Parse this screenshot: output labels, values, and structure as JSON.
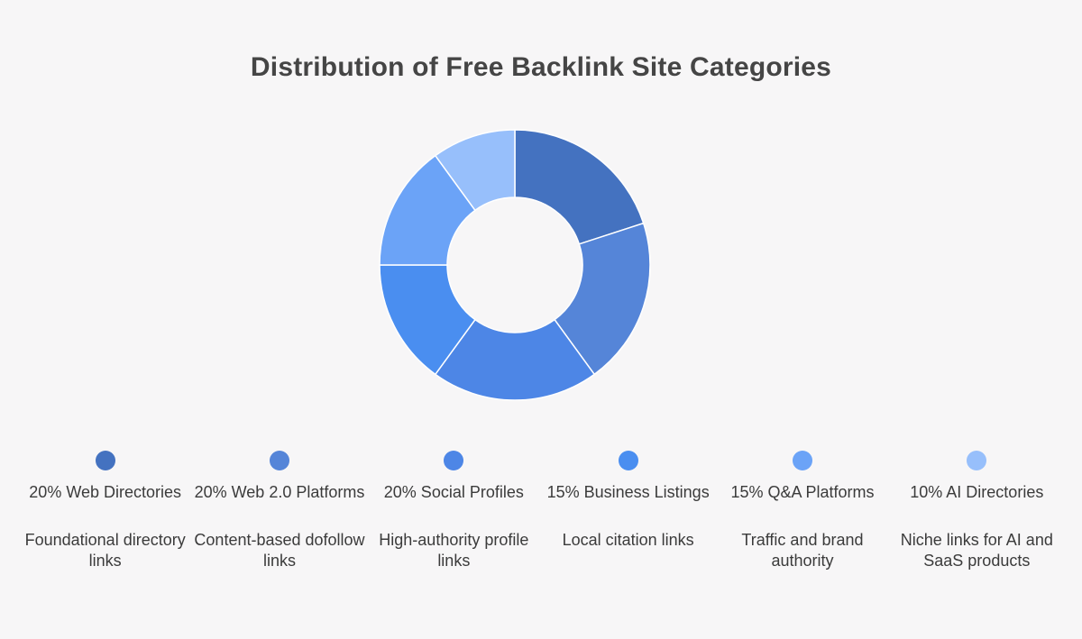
{
  "chart_data": {
    "type": "pie",
    "style": "donut",
    "title": "Distribution of Free Backlink Site Categories",
    "categories": [
      "Web Directories",
      "Web 2.0 Platforms",
      "Social Profiles",
      "Business Listings",
      "Q&A Platforms",
      "AI Directories"
    ],
    "values": [
      20,
      20,
      20,
      15,
      15,
      10
    ],
    "unit": "%",
    "colors": [
      "#4472c0",
      "#5585d8",
      "#4d86e6",
      "#4a8ef0",
      "#6ba3f7",
      "#97bffb"
    ],
    "legend_position": "bottom",
    "legend": [
      {
        "label": "20% Web Directories",
        "description": "Foundational directory links"
      },
      {
        "label": "20% Web 2.0 Platforms",
        "description": "Content-based dofollow links"
      },
      {
        "label": "20% Social Profiles",
        "description": "High-authority profile links"
      },
      {
        "label": "15% Business Listings",
        "description": "Local citation links"
      },
      {
        "label": "15% Q&A Platforms",
        "description": "Traffic and brand authority"
      },
      {
        "label": "10% AI Directories",
        "description": "Niche links for AI and SaaS products"
      }
    ]
  }
}
